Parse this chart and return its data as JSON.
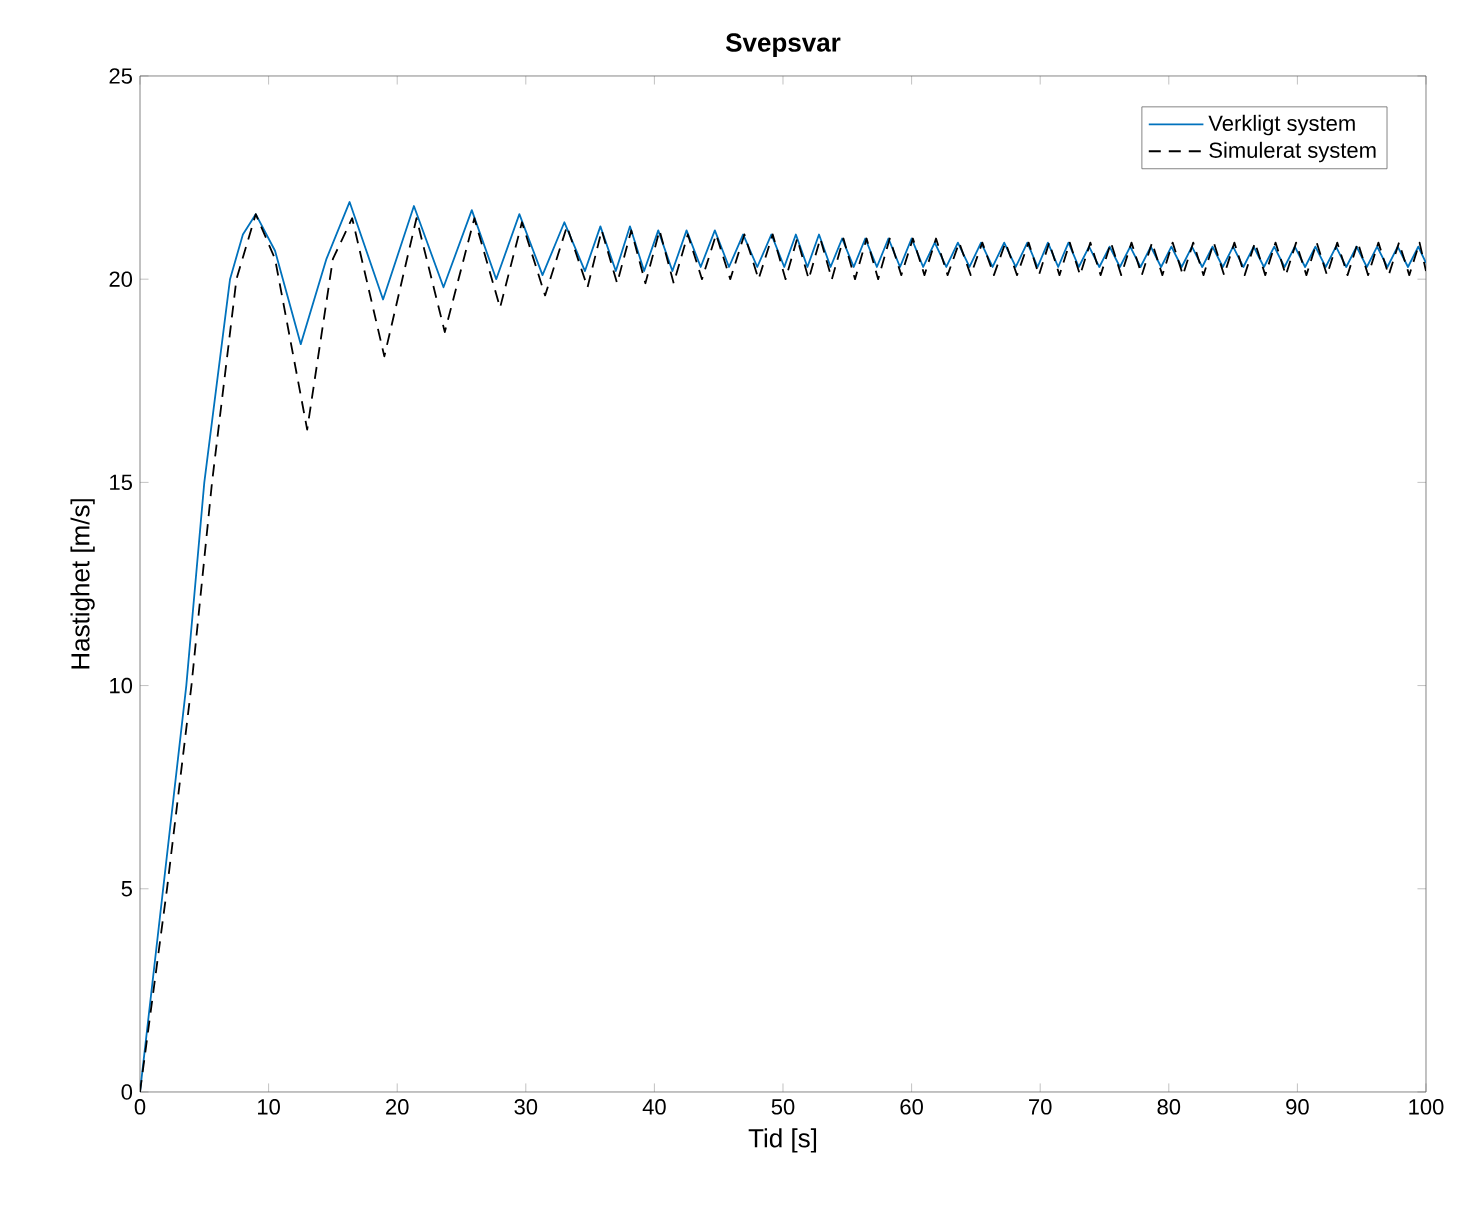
{
  "chart_data": {
    "type": "line",
    "title": "Svepsvar",
    "xlabel": "Tid [s]",
    "ylabel": "Hastighet [m/s]",
    "xlim": [
      0,
      100
    ],
    "ylim": [
      0,
      25
    ],
    "xticks": [
      0,
      10,
      20,
      30,
      40,
      50,
      60,
      70,
      80,
      90,
      100
    ],
    "yticks": [
      0,
      5,
      10,
      15,
      20,
      25
    ],
    "legend": "top right",
    "grid": false,
    "series": [
      {
        "name": "Verkligt system",
        "color": "#0072bd",
        "line_style": "solid",
        "x": [
          0,
          1.8,
          3.6,
          5,
          7,
          8,
          9,
          10.5,
          12.5,
          14.5,
          16.3,
          18.9,
          21.3,
          23.6,
          25.8,
          27.7,
          29.5,
          31.3,
          33,
          34.6,
          35.8,
          37,
          38.1,
          39.2,
          40.3,
          41.4,
          42.5,
          43.6,
          44.7,
          45.8,
          46.9,
          48,
          49.1,
          50.1,
          51,
          51.9,
          52.8,
          53.7,
          54.6,
          55.5,
          56.4,
          57.3,
          58.2,
          59.1,
          60,
          60.9,
          61.8,
          62.7,
          63.6,
          64.5,
          65.4,
          66.3,
          67.2,
          68.1,
          69,
          69.8,
          70.6,
          71.4,
          72.2,
          73,
          73.8,
          74.6,
          75.4,
          76.2,
          77,
          77.8,
          78.6,
          79.4,
          80.2,
          81,
          81.8,
          82.6,
          83.4,
          84.2,
          85,
          85.8,
          86.6,
          87.4,
          88.2,
          89,
          89.8,
          90.6,
          91.4,
          92.2,
          93,
          93.8,
          94.6,
          95.4,
          96.2,
          97,
          97.8,
          98.6,
          99.4,
          100
        ],
        "values": [
          0,
          5,
          10,
          15,
          20,
          21.1,
          21.6,
          20.7,
          18.4,
          20.5,
          21.9,
          19.5,
          21.8,
          19.8,
          21.7,
          20.0,
          21.6,
          20.1,
          21.4,
          20.2,
          21.3,
          20.2,
          21.3,
          20.2,
          21.2,
          20.2,
          21.2,
          20.3,
          21.2,
          20.3,
          21.1,
          20.3,
          21.1,
          20.3,
          21.1,
          20.3,
          21.1,
          20.3,
          21.0,
          20.3,
          21.0,
          20.3,
          21.0,
          20.3,
          21.0,
          20.3,
          20.9,
          20.3,
          20.9,
          20.3,
          20.9,
          20.3,
          20.9,
          20.3,
          20.9,
          20.3,
          20.9,
          20.3,
          20.9,
          20.3,
          20.8,
          20.3,
          20.8,
          20.3,
          20.8,
          20.3,
          20.8,
          20.3,
          20.8,
          20.3,
          20.8,
          20.3,
          20.8,
          20.3,
          20.8,
          20.3,
          20.8,
          20.3,
          20.8,
          20.3,
          20.8,
          20.3,
          20.8,
          20.3,
          20.8,
          20.3,
          20.8,
          20.3,
          20.8,
          20.3,
          20.8,
          20.3,
          20.8,
          20.4
        ]
      },
      {
        "name": "Simulerat system",
        "color": "#000000",
        "line_style": "dashed",
        "x": [
          0,
          2.1,
          4,
          5.6,
          7.5,
          9,
          10.5,
          13,
          15,
          16.5,
          19,
          21.5,
          23.7,
          26,
          28,
          29.7,
          31.5,
          33.2,
          34.8,
          35.9,
          37.1,
          38.2,
          39.3,
          40.4,
          41.5,
          42.6,
          43.7,
          44.8,
          45.9,
          47,
          48.1,
          49.2,
          50.2,
          51.1,
          52,
          52.9,
          53.8,
          54.7,
          55.6,
          56.5,
          57.4,
          58.3,
          59.2,
          60.1,
          61,
          61.9,
          62.8,
          63.7,
          64.6,
          65.5,
          66.4,
          67.3,
          68.2,
          69.1,
          69.9,
          70.7,
          71.5,
          72.3,
          73.1,
          73.9,
          74.7,
          75.5,
          76.3,
          77.1,
          77.9,
          78.7,
          79.5,
          80.3,
          81.1,
          81.9,
          82.7,
          83.5,
          84.3,
          85.1,
          85.9,
          86.7,
          87.5,
          88.3,
          89.1,
          89.9,
          90.7,
          91.5,
          92.3,
          93.1,
          93.9,
          94.7,
          95.5,
          96.3,
          97.1,
          97.9,
          98.7,
          99.5,
          100
        ],
        "values": [
          0,
          5,
          10,
          15,
          20,
          21.6,
          20.5,
          16.3,
          20.5,
          21.5,
          18.1,
          21.5,
          18.7,
          21.5,
          19.3,
          21.4,
          19.6,
          21.3,
          19.8,
          21.2,
          19.9,
          21.2,
          19.9,
          21.2,
          19.9,
          21.1,
          20.0,
          21.1,
          20.0,
          21.1,
          20.0,
          21.1,
          20.0,
          21.0,
          20.0,
          21.0,
          20.0,
          21.0,
          20.0,
          21.0,
          20.0,
          21.0,
          20.1,
          21.0,
          20.1,
          21.0,
          20.1,
          20.9,
          20.1,
          20.9,
          20.1,
          20.9,
          20.1,
          20.9,
          20.1,
          20.9,
          20.1,
          20.9,
          20.1,
          20.9,
          20.1,
          20.9,
          20.1,
          20.9,
          20.1,
          20.9,
          20.1,
          20.9,
          20.1,
          20.9,
          20.1,
          20.9,
          20.1,
          20.9,
          20.1,
          20.9,
          20.1,
          20.9,
          20.1,
          20.9,
          20.1,
          20.9,
          20.1,
          20.9,
          20.1,
          20.9,
          20.1,
          20.9,
          20.1,
          20.9,
          20.1,
          20.9,
          20.2
        ]
      }
    ]
  }
}
